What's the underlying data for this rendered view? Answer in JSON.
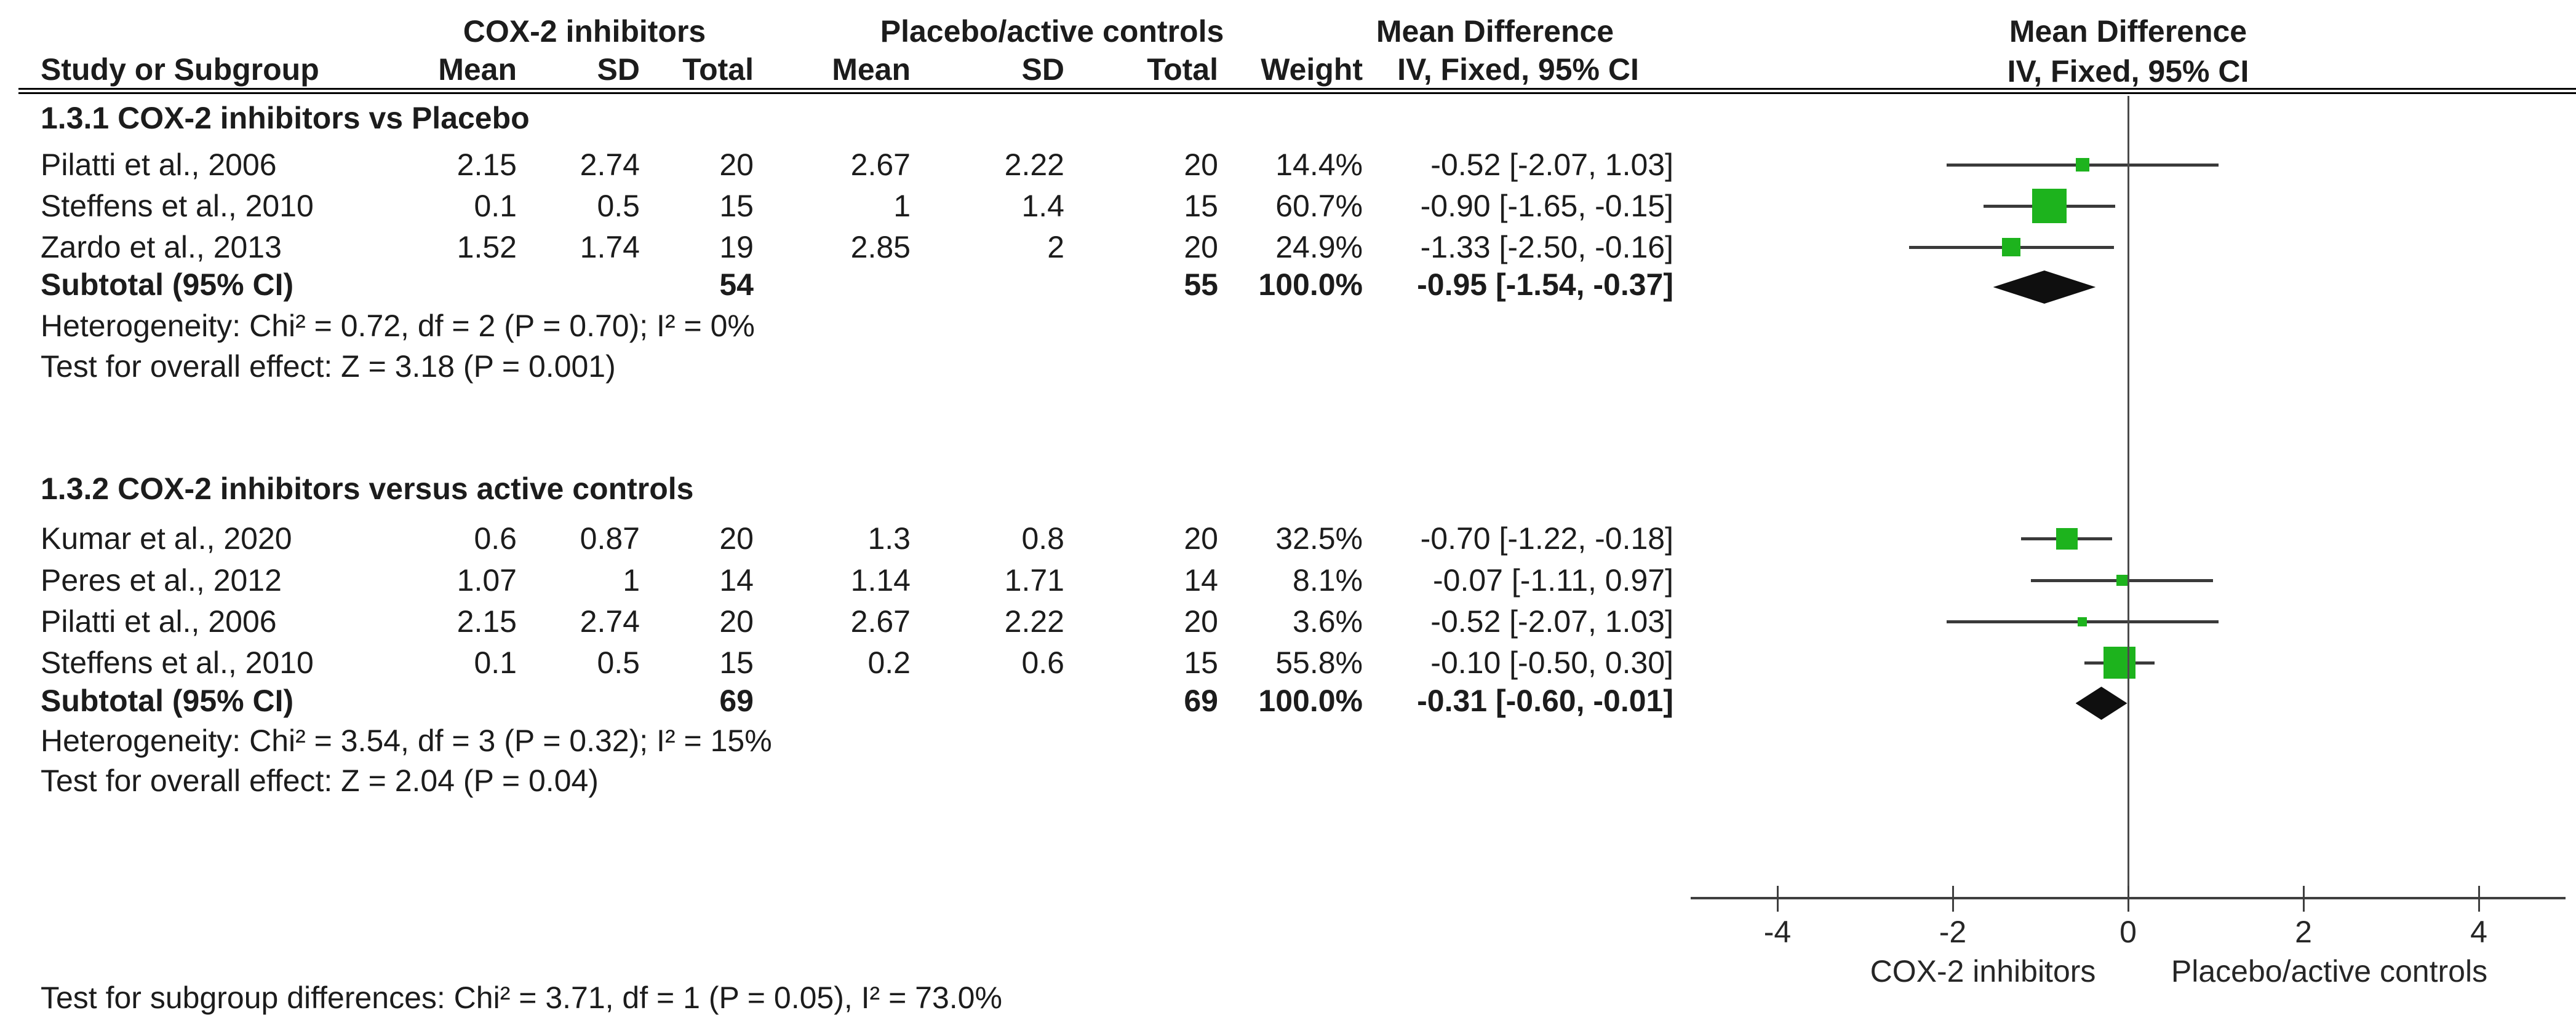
{
  "header": {
    "study_col": "Study or Subgroup",
    "group1": "COX-2 inhibitors",
    "group2": "Placebo/active controls",
    "effect_col_title": "Mean Difference",
    "effect_col_subtitle": "IV, Fixed, 95% CI",
    "plot_title": "Mean Difference",
    "plot_subtitle": "IV, Fixed, 95% CI",
    "cols": [
      "Mean",
      "SD",
      "Total",
      "Mean",
      "SD",
      "Total",
      "Weight",
      "IV, Fixed, 95% CI"
    ]
  },
  "sections": [
    {
      "title": "1.3.1 COX-2 inhibitors vs Placebo",
      "studies": [
        {
          "name": "Pilatti et al., 2006",
          "mean1": "2.15",
          "sd1": "2.74",
          "total1": "20",
          "mean2": "2.67",
          "sd2": "2.22",
          "total2": "20",
          "weight": "14.4%",
          "ci_text": "-0.52 [-2.07, 1.03]",
          "md": -0.52,
          "lo": -2.07,
          "hi": 1.03,
          "weight_pct": 14.4
        },
        {
          "name": "Steffens et al., 2010",
          "mean1": "0.1",
          "sd1": "0.5",
          "total1": "15",
          "mean2": "1",
          "sd2": "1.4",
          "total2": "15",
          "weight": "60.7%",
          "ci_text": "-0.90 [-1.65, -0.15]",
          "md": -0.9,
          "lo": -1.65,
          "hi": -0.15,
          "weight_pct": 60.7
        },
        {
          "name": "Zardo et al., 2013",
          "mean1": "1.52",
          "sd1": "1.74",
          "total1": "19",
          "mean2": "2.85",
          "sd2": "2",
          "total2": "20",
          "weight": "24.9%",
          "ci_text": "-1.33 [-2.50, -0.16]",
          "md": -1.33,
          "lo": -2.5,
          "hi": -0.16,
          "weight_pct": 24.9
        }
      ],
      "subtotal": {
        "label": "Subtotal (95% CI)",
        "total1": "54",
        "total2": "55",
        "weight": "100.0%",
        "ci_text": "-0.95 [-1.54, -0.37]",
        "md": -0.95,
        "lo": -1.54,
        "hi": -0.37
      },
      "heterogeneity": "Heterogeneity: Chi² = 0.72, df = 2 (P = 0.70); I² = 0%",
      "overall_effect": "Test for overall effect: Z = 3.18 (P = 0.001)"
    },
    {
      "title": "1.3.2 COX-2 inhibitors versus active controls",
      "studies": [
        {
          "name": "Kumar et al., 2020",
          "mean1": "0.6",
          "sd1": "0.87",
          "total1": "20",
          "mean2": "1.3",
          "sd2": "0.8",
          "total2": "20",
          "weight": "32.5%",
          "ci_text": "-0.70 [-1.22, -0.18]",
          "md": -0.7,
          "lo": -1.22,
          "hi": -0.18,
          "weight_pct": 32.5
        },
        {
          "name": "Peres et al., 2012",
          "mean1": "1.07",
          "sd1": "1",
          "total1": "14",
          "mean2": "1.14",
          "sd2": "1.71",
          "total2": "14",
          "weight": "8.1%",
          "ci_text": "-0.07 [-1.11, 0.97]",
          "md": -0.07,
          "lo": -1.11,
          "hi": 0.97,
          "weight_pct": 8.1
        },
        {
          "name": "Pilatti et al., 2006",
          "mean1": "2.15",
          "sd1": "2.74",
          "total1": "20",
          "mean2": "2.67",
          "sd2": "2.22",
          "total2": "20",
          "weight": "3.6%",
          "ci_text": "-0.52 [-2.07, 1.03]",
          "md": -0.52,
          "lo": -2.07,
          "hi": 1.03,
          "weight_pct": 3.6
        },
        {
          "name": "Steffens et al., 2010",
          "mean1": "0.1",
          "sd1": "0.5",
          "total1": "15",
          "mean2": "0.2",
          "sd2": "0.6",
          "total2": "15",
          "weight": "55.8%",
          "ci_text": "-0.10 [-0.50, 0.30]",
          "md": -0.1,
          "lo": -0.5,
          "hi": 0.3,
          "weight_pct": 55.8
        }
      ],
      "subtotal": {
        "label": "Subtotal (95% CI)",
        "total1": "69",
        "total2": "69",
        "weight": "100.0%",
        "ci_text": "-0.31 [-0.60, -0.01]",
        "md": -0.31,
        "lo": -0.6,
        "hi": -0.01
      },
      "heterogeneity": "Heterogeneity: Chi² = 3.54, df = 3 (P = 0.32); I² = 15%",
      "overall_effect": "Test for overall effect: Z = 2.04 (P = 0.04)"
    }
  ],
  "footer": "Test for subgroup differences: Chi² = 3.71, df = 1 (P = 0.05), I² = 73.0%",
  "axis": {
    "ticks": [
      "-4",
      "-2",
      "0",
      "2",
      "4"
    ],
    "tick_values": [
      -4,
      -2,
      0,
      2,
      4
    ],
    "left_label": "COX-2 inhibitors",
    "right_label": "Placebo/active controls"
  },
  "colors": {
    "marker_green": "#1db31d",
    "diamond_black": "#0f0f0f",
    "ci_line": "#3a3a3a"
  },
  "chart_data": {
    "type": "scatter",
    "variant": "forest-plot",
    "effect_measure": "Mean Difference, IV, Fixed, 95% CI",
    "xlim": [
      -4,
      4
    ],
    "xticks": [
      -4,
      -2,
      0,
      2,
      4
    ],
    "xlabel_left": "COX-2 inhibitors",
    "xlabel_right": "Placebo/active controls",
    "grid": false,
    "groups": [
      {
        "name": "1.3.1 COX-2 inhibitors vs Placebo",
        "points": [
          {
            "study": "Pilatti et al., 2006",
            "md": -0.52,
            "ci": [
              -2.07,
              1.03
            ],
            "weight_pct": 14.4
          },
          {
            "study": "Steffens et al., 2010",
            "md": -0.9,
            "ci": [
              -1.65,
              -0.15
            ],
            "weight_pct": 60.7
          },
          {
            "study": "Zardo et al., 2013",
            "md": -1.33,
            "ci": [
              -2.5,
              -0.16
            ],
            "weight_pct": 24.9
          }
        ],
        "subtotal": {
          "md": -0.95,
          "ci": [
            -1.54,
            -0.37
          ],
          "total1": 54,
          "total2": 55
        },
        "heterogeneity": {
          "chi2": 0.72,
          "df": 2,
          "p": 0.7,
          "i2_pct": 0
        },
        "overall_effect": {
          "z": 3.18,
          "p": 0.001
        }
      },
      {
        "name": "1.3.2 COX-2 inhibitors versus active controls",
        "points": [
          {
            "study": "Kumar et al., 2020",
            "md": -0.7,
            "ci": [
              -1.22,
              -0.18
            ],
            "weight_pct": 32.5
          },
          {
            "study": "Peres et al., 2012",
            "md": -0.07,
            "ci": [
              -1.11,
              0.97
            ],
            "weight_pct": 8.1
          },
          {
            "study": "Pilatti et al., 2006",
            "md": -0.52,
            "ci": [
              -2.07,
              1.03
            ],
            "weight_pct": 3.6
          },
          {
            "study": "Steffens et al., 2010",
            "md": -0.1,
            "ci": [
              -0.5,
              0.3
            ],
            "weight_pct": 55.8
          }
        ],
        "subtotal": {
          "md": -0.31,
          "ci": [
            -0.6,
            -0.01
          ],
          "total1": 69,
          "total2": 69
        },
        "heterogeneity": {
          "chi2": 3.54,
          "df": 3,
          "p": 0.32,
          "i2_pct": 15
        },
        "overall_effect": {
          "z": 2.04,
          "p": 0.04
        }
      }
    ],
    "subgroup_difference": {
      "chi2": 3.71,
      "df": 1,
      "p": 0.05,
      "i2_pct": 73.0
    }
  }
}
